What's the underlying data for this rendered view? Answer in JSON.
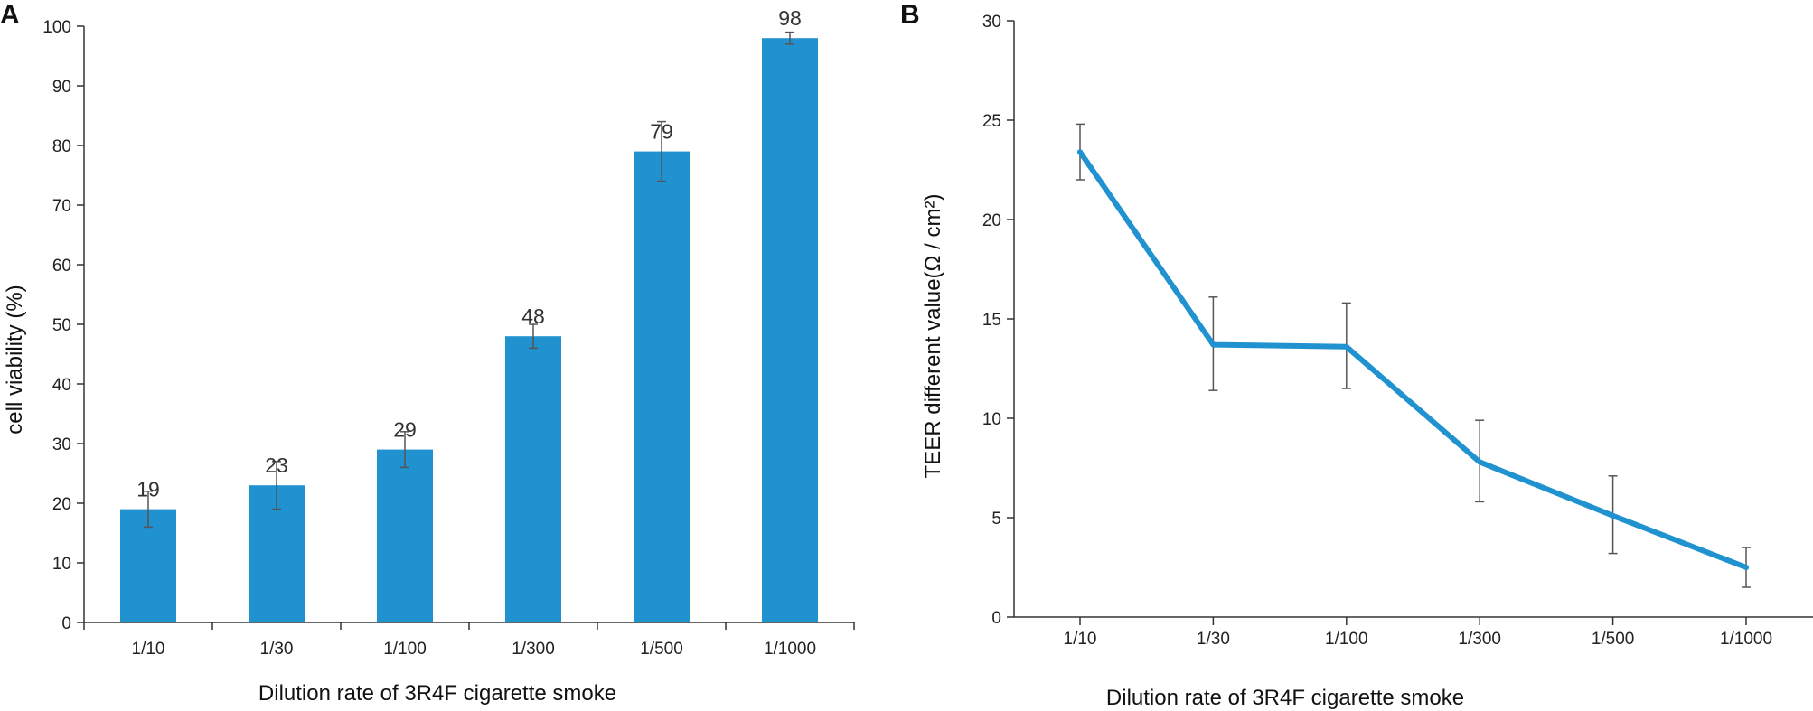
{
  "chart_data": [
    {
      "type": "bar",
      "panel_label": "A",
      "categories": [
        "1/10",
        "1/30",
        "1/100",
        "1/300",
        "1/500",
        "1/1000"
      ],
      "values": [
        19,
        23,
        29,
        48,
        79,
        98
      ],
      "errors": [
        3,
        4,
        3,
        2,
        5,
        1
      ],
      "data_labels": [
        "19",
        "23",
        "29",
        "48",
        "79",
        "98"
      ],
      "xlabel": "Dilution rate of 3R4F cigarette smoke",
      "ylabel": "cell viability (%)",
      "ylim": [
        0,
        100
      ],
      "yticks": [
        0,
        10,
        20,
        30,
        40,
        50,
        60,
        70,
        80,
        90,
        100
      ],
      "color": "#2192d0"
    },
    {
      "type": "line",
      "panel_label": "B",
      "categories": [
        "1/10",
        "1/30",
        "1/100",
        "1/300",
        "1/500",
        "1/1000"
      ],
      "values": [
        23.4,
        13.7,
        13.6,
        7.8,
        5.1,
        2.5
      ],
      "errors_low": [
        1.4,
        2.3,
        2.1,
        2.0,
        1.9,
        1.0
      ],
      "errors_high": [
        1.4,
        2.4,
        2.2,
        2.1,
        2.0,
        1.0
      ],
      "xlabel": "Dilution rate of 3R4F cigarette smoke",
      "ylabel": "TEER different value(Ω / cm²)",
      "ylim": [
        0,
        30
      ],
      "yticks": [
        0,
        5,
        10,
        15,
        20,
        25,
        30
      ],
      "color": "#2192d0"
    }
  ]
}
